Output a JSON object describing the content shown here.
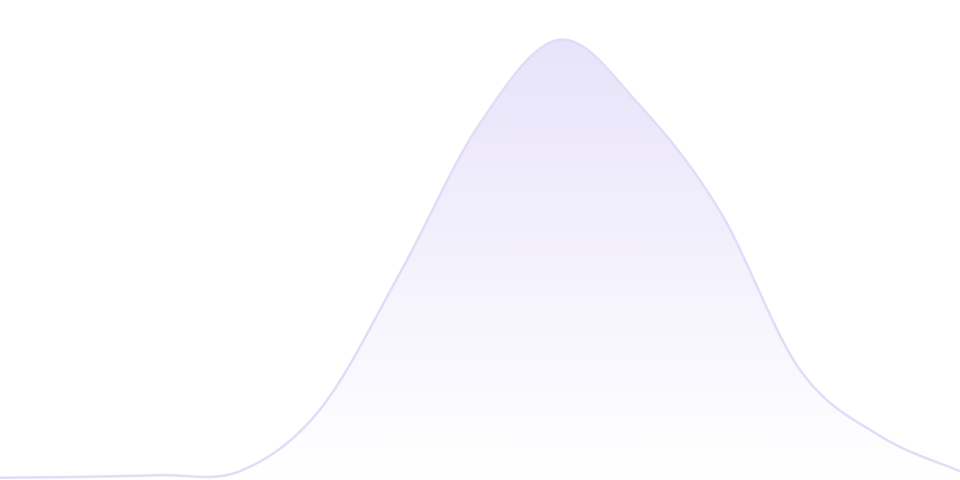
{
  "chart_data": {
    "type": "area",
    "title": "",
    "xlabel": "",
    "ylabel": "",
    "x": [
      0,
      1,
      2,
      3,
      4,
      5,
      6,
      7,
      8,
      9,
      10,
      11,
      12
    ],
    "values": [
      0.5,
      0.7,
      1.1,
      2,
      16,
      47,
      81,
      100,
      85,
      61,
      25,
      10,
      2
    ],
    "xlim": [
      0,
      12
    ],
    "ylim": [
      0,
      109
    ],
    "grid": false,
    "axes_visible": false,
    "colors": {
      "line": "#e2dcf7",
      "fill_top": "#e8e3fa",
      "fill_bottom": "#ffffff"
    }
  }
}
